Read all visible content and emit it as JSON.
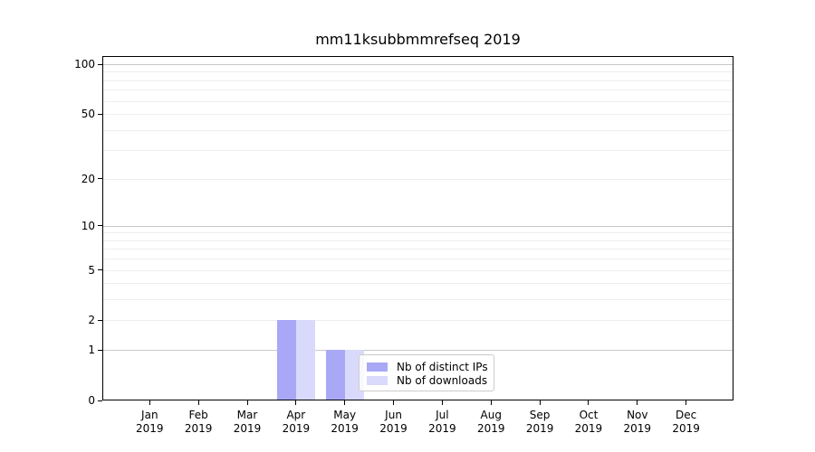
{
  "chart_data": {
    "type": "bar",
    "title": "mm11ksubbmmrefseq 2019",
    "categories": [
      "Jan 2019",
      "Feb 2019",
      "Mar 2019",
      "Apr 2019",
      "May 2019",
      "Jun 2019",
      "Jul 2019",
      "Aug 2019",
      "Sep 2019",
      "Oct 2019",
      "Nov 2019",
      "Dec 2019"
    ],
    "series": [
      {
        "name": "Nb of distinct IPs",
        "color": "#a8a8f7",
        "values": [
          0,
          0,
          0,
          2,
          1,
          0,
          0,
          0,
          0,
          0,
          0,
          0
        ]
      },
      {
        "name": "Nb of downloads",
        "color": "#d9d9fb",
        "values": [
          0,
          0,
          0,
          2,
          1,
          0,
          0,
          0,
          0,
          0,
          0,
          0
        ]
      }
    ],
    "yscale": "log1p",
    "ylim": [
      0,
      115
    ],
    "yticks": [
      0,
      1,
      2,
      5,
      10,
      20,
      50,
      100
    ],
    "major_grid_values": [
      1,
      10,
      100
    ],
    "faint_grid_values": [
      2,
      5,
      20,
      50
    ],
    "minor_grid_values": [
      3,
      4,
      6,
      7,
      8,
      9,
      30,
      40,
      60,
      70,
      80,
      90
    ],
    "grid": true,
    "legend_position": "inside-bottom-center-left",
    "xlabel": "",
    "ylabel": ""
  },
  "colors": {
    "axis": "#000000",
    "grid_major": "#c8c8c8",
    "grid_minor": "#ededed",
    "legend_border": "#cccccc",
    "legend_background": "rgba(255,255,255,0.8)",
    "background": "#ffffff",
    "text": "#000000"
  }
}
